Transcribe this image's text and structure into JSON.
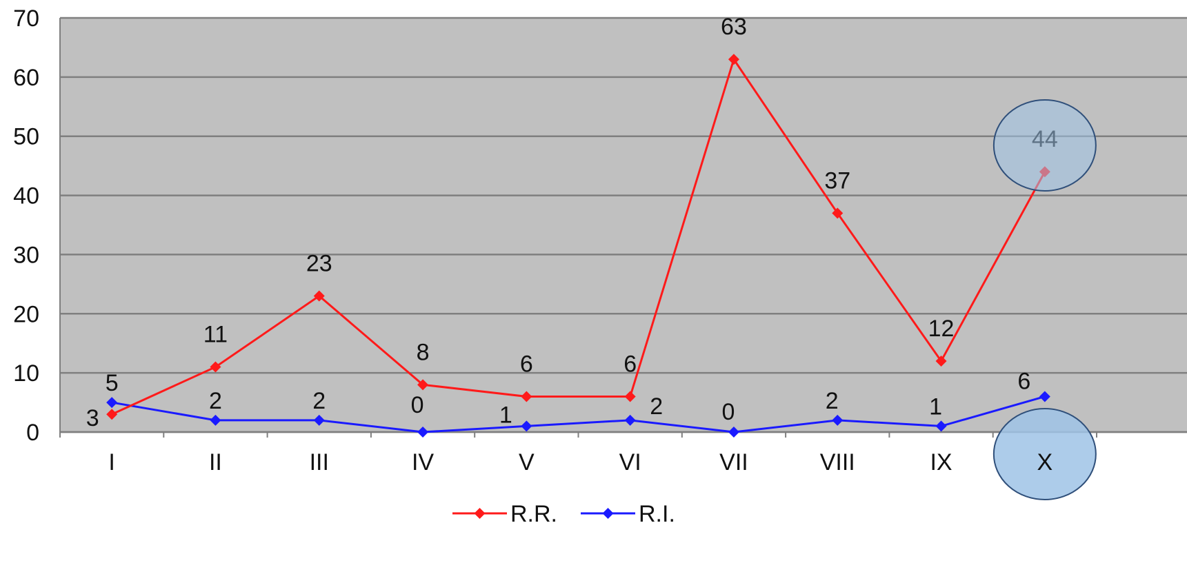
{
  "chart_data": {
    "type": "line",
    "categories": [
      "I",
      "II",
      "III",
      "IV",
      "V",
      "VI",
      "VII",
      "VIII",
      "IX",
      "X"
    ],
    "series": [
      {
        "name": "R.R.",
        "color": "#ff1a1a",
        "values": [
          3,
          11,
          23,
          8,
          6,
          6,
          63,
          37,
          12,
          44
        ]
      },
      {
        "name": "R.I.",
        "color": "#1a1aff",
        "values": [
          5,
          2,
          2,
          0,
          1,
          2,
          0,
          2,
          1,
          6
        ]
      }
    ],
    "ylim": [
      0,
      70
    ],
    "yticks": [
      "0",
      "10",
      "20",
      "30",
      "40",
      "50",
      "60",
      "70"
    ],
    "grid": true,
    "plot_background": "#c0c0c0",
    "gridline_color": "#7f7f7f",
    "legend_position": "bottom-center",
    "highlight_color": "#9fc3e6",
    "highlighted_category": "X"
  }
}
